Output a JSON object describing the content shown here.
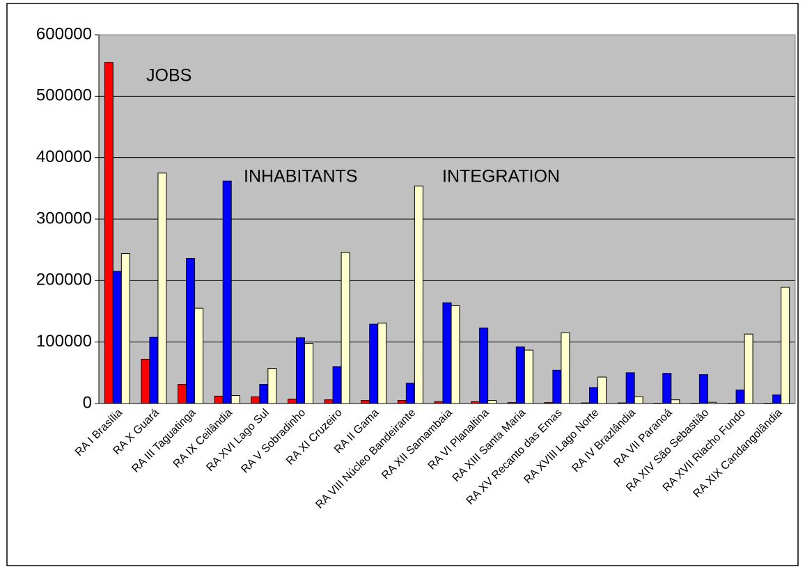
{
  "chart_data": {
    "type": "bar",
    "categories": [
      "RA I Brasília",
      "RA X Guará",
      "RA III Taguatinga",
      "RA IX Ceilândia",
      "RA XVI Lago Sul",
      "RA V Sobradinho",
      "RA XI Cruzeiro",
      "RA II Gama",
      "RA VIII Núcleo Bandeirante",
      "RA XII Samambaia",
      "RA VI Planaltina",
      "RA XIII Santa Maria",
      "RA XV Recanto das Emas",
      "RA XVIII Lago Norte",
      "RA IV Brazlândia",
      "RA VII Paranoá",
      "RA XIV São Sebastião",
      "RA XVII Riacho Fundo",
      "RA XIX Candangolândia"
    ],
    "series": [
      {
        "name": "JOBS",
        "color": "#ff0000",
        "values": [
          555000,
          72000,
          31000,
          12000,
          11000,
          7000,
          6000,
          5000,
          5000,
          3000,
          3000,
          1500,
          1500,
          1000,
          1000,
          500,
          500,
          500,
          500
        ]
      },
      {
        "name": "INHABITANTS",
        "color": "#0000ff",
        "values": [
          215000,
          108000,
          236000,
          362000,
          31000,
          107000,
          60000,
          129000,
          33000,
          164000,
          123000,
          92000,
          54000,
          26000,
          50000,
          49000,
          47000,
          22000,
          14000
        ]
      },
      {
        "name": "INTEGRATION",
        "color": "#ffffcc",
        "values": [
          244000,
          375000,
          155000,
          13000,
          57000,
          98000,
          246000,
          131000,
          354000,
          159000,
          5000,
          87000,
          115000,
          43000,
          11000,
          6000,
          2000,
          113000,
          189000
        ]
      }
    ],
    "ylim": [
      0,
      600000
    ],
    "yticks": [
      0,
      100000,
      200000,
      300000,
      400000,
      500000,
      600000
    ],
    "grid": true,
    "plot_background": "#c0c0c0"
  }
}
